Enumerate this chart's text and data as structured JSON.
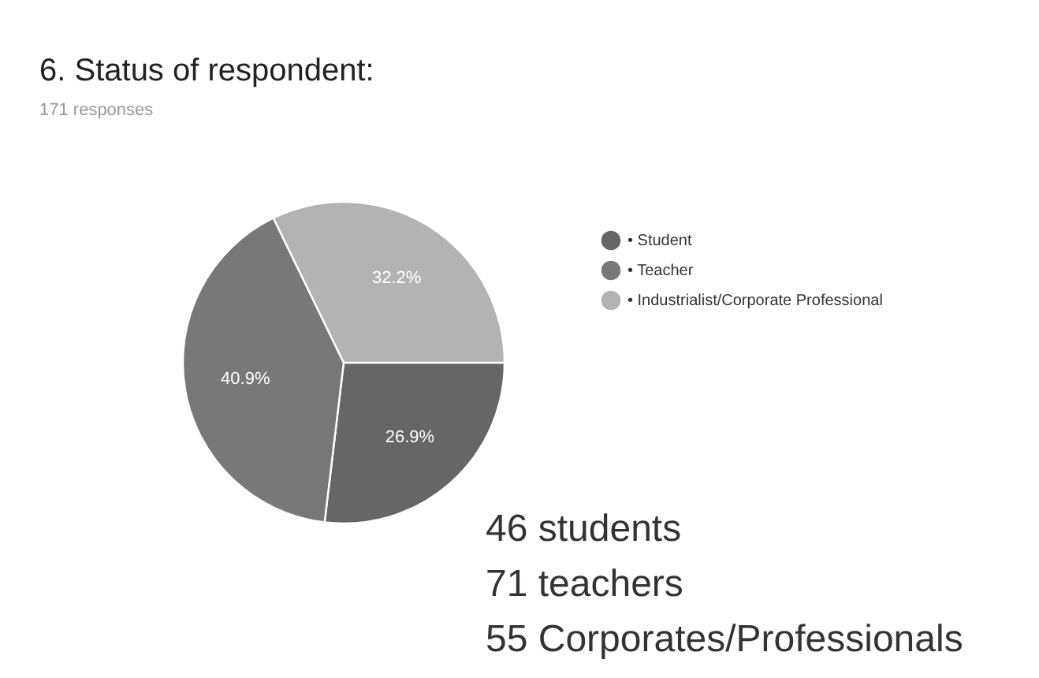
{
  "chart_data": {
    "type": "pie",
    "title": "6. Status of respondent:",
    "subtitle": "171 responses",
    "categories": [
      "• Student",
      "• Teacher",
      "• Industrialist/Corporate Professional"
    ],
    "values": [
      26.9,
      40.9,
      32.2
    ],
    "value_labels": [
      "26.9%",
      "40.9%",
      "32.2%"
    ],
    "colors": [
      "#666666",
      "#787878",
      "#b3b3b3"
    ],
    "legend": "right",
    "annotations": [
      "46 students",
      "71 teachers",
      "55 Corporates/Professionals"
    ]
  }
}
